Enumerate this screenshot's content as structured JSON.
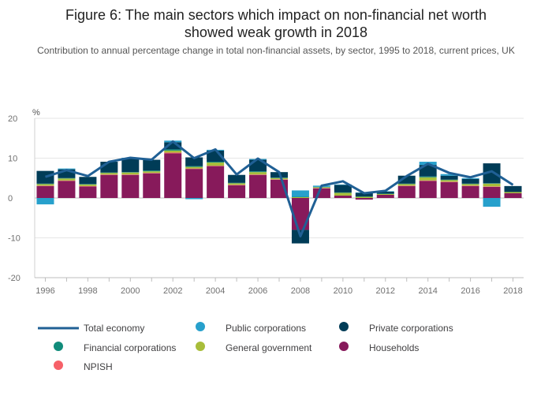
{
  "title_line1": "Figure 6: The main sectors which impact on non-financial net worth",
  "title_line2": "showed weak growth in 2018",
  "subtitle": "Contribution to annual percentage change in total non-financial assets, by sector, 1995 to 2018, current prices, UK",
  "colors": {
    "Total economy": "#206095",
    "Public corporations": "#27a0cc",
    "Private corporations": "#003c57",
    "Financial corporations": "#118c7b",
    "General government": "#a8bd3a",
    "Households": "#871a5b",
    "NPISH": "#f66068"
  },
  "chart_data": {
    "type": "bar",
    "stacked": true,
    "unit_label": "%",
    "ylim": [
      -20,
      20
    ],
    "yticks": [
      -20,
      -10,
      0,
      10,
      20
    ],
    "x": [
      1996,
      1997,
      1998,
      1999,
      2000,
      2001,
      2002,
      2003,
      2004,
      2005,
      2006,
      2007,
      2008,
      2009,
      2010,
      2011,
      2012,
      2013,
      2014,
      2015,
      2016,
      2017,
      2018
    ],
    "xticks": [
      1996,
      1998,
      2000,
      2002,
      2004,
      2006,
      2008,
      2010,
      2012,
      2014,
      2016,
      2018
    ],
    "grid": true,
    "legend_position": "bottom",
    "series": [
      {
        "name": "Households",
        "type": "bar",
        "values": [
          3.0,
          4.3,
          2.9,
          5.8,
          5.8,
          6.2,
          11.2,
          7.3,
          8.0,
          3.2,
          5.8,
          4.6,
          -8.0,
          2.4,
          0.6,
          -0.4,
          0.8,
          3.0,
          4.3,
          4.0,
          3.0,
          2.8,
          1.2
        ]
      },
      {
        "name": "NPISH",
        "type": "bar",
        "values": [
          0.1,
          0.1,
          0.1,
          0.1,
          0.1,
          0.1,
          0.2,
          0.1,
          0.1,
          0.1,
          0.1,
          0.1,
          0.0,
          0.1,
          0.0,
          0.0,
          0.0,
          0.1,
          0.1,
          0.1,
          0.1,
          0.1,
          0.0
        ]
      },
      {
        "name": "General government",
        "type": "bar",
        "values": [
          0.4,
          0.5,
          0.4,
          0.4,
          0.5,
          0.4,
          0.5,
          0.4,
          0.8,
          0.4,
          0.6,
          0.3,
          0.2,
          0.2,
          0.7,
          0.3,
          0.2,
          0.4,
          0.8,
          0.4,
          0.4,
          0.7,
          0.3
        ]
      },
      {
        "name": "Financial corporations",
        "type": "bar",
        "values": [
          0.1,
          0.1,
          0.1,
          0.1,
          0.1,
          0.2,
          0.3,
          0.2,
          0.2,
          0.1,
          0.2,
          0.1,
          0.1,
          0.1,
          0.1,
          0.1,
          0.1,
          0.1,
          0.2,
          0.1,
          0.1,
          0.1,
          0.0
        ]
      },
      {
        "name": "Private corporations",
        "type": "bar",
        "values": [
          3.2,
          2.2,
          1.8,
          2.7,
          3.5,
          2.7,
          1.8,
          2.2,
          2.8,
          2.0,
          2.9,
          1.4,
          -3.4,
          0.0,
          1.9,
          0.9,
          0.5,
          2.0,
          2.9,
          1.0,
          1.2,
          5.0,
          1.5
        ]
      },
      {
        "name": "Public corporations",
        "type": "bar",
        "values": [
          -1.6,
          0.2,
          0.0,
          0.0,
          0.1,
          0.0,
          0.4,
          -0.3,
          0.2,
          0.0,
          0.2,
          0.0,
          1.6,
          0.3,
          0.1,
          0.1,
          0.1,
          0.0,
          0.8,
          0.4,
          0.2,
          -2.2,
          0.0
        ]
      },
      {
        "name": "Total economy",
        "type": "line",
        "values": [
          5.3,
          7.0,
          5.5,
          9.1,
          10.1,
          9.6,
          14.2,
          10.0,
          12.2,
          5.9,
          9.9,
          6.5,
          -9.6,
          3.1,
          4.2,
          1.2,
          1.8,
          5.5,
          8.6,
          6.3,
          5.2,
          6.7,
          3.3
        ]
      }
    ]
  },
  "legend": [
    {
      "label": "Total economy",
      "kind": "line"
    },
    {
      "label": "Public corporations",
      "kind": "dot"
    },
    {
      "label": "Private corporations",
      "kind": "dot"
    },
    {
      "label": "Financial corporations",
      "kind": "dot"
    },
    {
      "label": "General government",
      "kind": "dot"
    },
    {
      "label": "Households",
      "kind": "dot"
    },
    {
      "label": "NPISH",
      "kind": "dot"
    }
  ]
}
